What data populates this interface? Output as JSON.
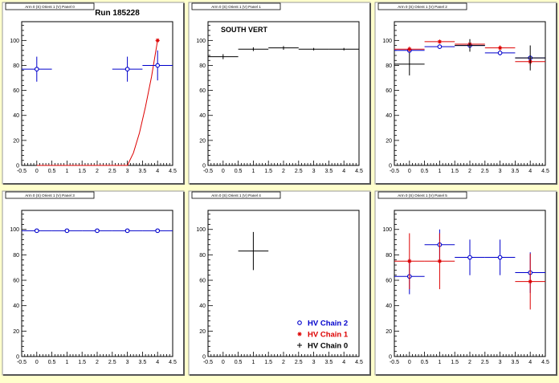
{
  "chart_data": [
    {
      "type": "scatter",
      "panel_title": "Arm 0 (S) Orient 1 (V) Panel 0",
      "title": "Run 185228",
      "xlim": [
        -0.5,
        4.5
      ],
      "ylim": [
        0,
        115
      ],
      "x_ticks": [
        "-0.5",
        "0",
        "0.5",
        "1",
        "1.5",
        "2",
        "2.5",
        "3",
        "3.5",
        "4",
        "4.5"
      ],
      "y_ticks": [
        "0",
        "20",
        "40",
        "60",
        "80",
        "100"
      ],
      "series": [
        {
          "color": "#0000cc",
          "marker": "circle",
          "points": [
            {
              "x": 0,
              "y": 77,
              "xerr": 0.5,
              "yerr": 10
            },
            {
              "x": 3,
              "y": 77,
              "xerr": 0.5,
              "yerr": 10
            },
            {
              "x": 4,
              "y": 80,
              "xerr": 0.5,
              "yerr": 12
            }
          ]
        },
        {
          "color": "#dd0000",
          "marker": "star",
          "points": [
            {
              "x": 4,
              "y": 100,
              "xerr": 0,
              "yerr": 0
            }
          ]
        }
      ],
      "fit_curve": {
        "color": "#dd0000",
        "x": [
          0,
          1,
          2,
          3,
          3.2,
          3.4,
          3.6,
          3.8,
          4.0
        ],
        "y": [
          0,
          0,
          0,
          0,
          10,
          26,
          47,
          71,
          100
        ]
      }
    },
    {
      "type": "scatter",
      "panel_title": "Arm 0 (S) Orient 1 (V) Panel 1",
      "title": "SOUTH VERT",
      "xlim": [
        -0.5,
        4.5
      ],
      "ylim": [
        0,
        115
      ],
      "x_ticks": [
        "-0.5",
        "0",
        "0.5",
        "1",
        "1.5",
        "2",
        "2.5",
        "3",
        "3.5",
        "4",
        "4.5"
      ],
      "y_ticks": [
        "0",
        "20",
        "40",
        "60",
        "80",
        "100"
      ],
      "series": [
        {
          "color": "#000000",
          "marker": "cross",
          "points": [
            {
              "x": 0,
              "y": 87,
              "xerr": 0.5,
              "yerr": 2
            },
            {
              "x": 1,
              "y": 93,
              "xerr": 0.5,
              "yerr": 1.5
            },
            {
              "x": 2,
              "y": 94,
              "xerr": 0.5,
              "yerr": 1.5
            },
            {
              "x": 3,
              "y": 93,
              "xerr": 0.5,
              "yerr": 1
            },
            {
              "x": 4,
              "y": 93,
              "xerr": 0.5,
              "yerr": 1
            }
          ]
        }
      ]
    },
    {
      "type": "scatter",
      "panel_title": "Arm 0 (S) Orient 1 (V) Panel 2",
      "xlim": [
        -0.5,
        4.5
      ],
      "ylim": [
        0,
        115
      ],
      "x_ticks": [
        "-0.5",
        "0",
        "0.5",
        "1",
        "1.5",
        "2",
        "2.5",
        "3",
        "3.5",
        "4",
        "4.5"
      ],
      "y_ticks": [
        "0",
        "20",
        "40",
        "60",
        "80",
        "100"
      ],
      "series": [
        {
          "color": "#0000cc",
          "marker": "circle",
          "points": [
            {
              "x": 0,
              "y": 92,
              "xerr": 0.5,
              "yerr": 2
            },
            {
              "x": 1,
              "y": 95,
              "xerr": 0.5,
              "yerr": 1
            },
            {
              "x": 2,
              "y": 96,
              "xerr": 0.5,
              "yerr": 2
            },
            {
              "x": 3,
              "y": 90,
              "xerr": 0.5,
              "yerr": 2
            },
            {
              "x": 4,
              "y": 86,
              "xerr": 0.5,
              "yerr": 2
            }
          ]
        },
        {
          "color": "#dd0000",
          "marker": "star",
          "points": [
            {
              "x": 0,
              "y": 93,
              "xerr": 0.5,
              "yerr": 2
            },
            {
              "x": 1,
              "y": 99,
              "xerr": 0.5,
              "yerr": 1
            },
            {
              "x": 2,
              "y": 97,
              "xerr": 0.5,
              "yerr": 2
            },
            {
              "x": 3,
              "y": 94,
              "xerr": 0.5,
              "yerr": 2
            },
            {
              "x": 4,
              "y": 83,
              "xerr": 0.5,
              "yerr": 3
            }
          ]
        },
        {
          "color": "#000000",
          "marker": "cross",
          "points": [
            {
              "x": 0,
              "y": 81,
              "xerr": 0.5,
              "yerr": 9
            },
            {
              "x": 2,
              "y": 96,
              "xerr": 0.5,
              "yerr": 5
            },
            {
              "x": 4,
              "y": 86,
              "xerr": 0.5,
              "yerr": 10
            }
          ]
        }
      ]
    },
    {
      "type": "scatter",
      "panel_title": "Arm 0 (S) Orient 1 (V) Panel 3",
      "xlim": [
        -0.5,
        4.5
      ],
      "ylim": [
        0,
        115
      ],
      "x_ticks": [
        "-0.5",
        "0",
        "0.5",
        "1",
        "1.5",
        "2",
        "2.5",
        "3",
        "3.5",
        "4",
        "4.5"
      ],
      "y_ticks": [
        "0",
        "20",
        "40",
        "60",
        "80",
        "100"
      ],
      "series": [
        {
          "color": "#0000cc",
          "marker": "circle",
          "points": [
            {
              "x": 0,
              "y": 99,
              "xerr": 0.5,
              "yerr": 0.5
            },
            {
              "x": 1,
              "y": 99,
              "xerr": 0.5,
              "yerr": 0.5
            },
            {
              "x": 2,
              "y": 99,
              "xerr": 0.5,
              "yerr": 0.5
            },
            {
              "x": 3,
              "y": 99,
              "xerr": 0.5,
              "yerr": 0.5
            },
            {
              "x": 4,
              "y": 99,
              "xerr": 0.5,
              "yerr": 0.5
            }
          ]
        }
      ]
    },
    {
      "type": "scatter",
      "panel_title": "Arm 0 (S) Orient 1 (V) Panel 4",
      "xlim": [
        -0.5,
        4.5
      ],
      "ylim": [
        0,
        115
      ],
      "x_ticks": [
        "-0.5",
        "0",
        "0.5",
        "1",
        "1.5",
        "2",
        "2.5",
        "3",
        "3.5",
        "4",
        "4.5"
      ],
      "y_ticks": [
        "0",
        "20",
        "40",
        "60",
        "80",
        "100"
      ],
      "series": [
        {
          "color": "#000000",
          "marker": "cross",
          "points": [
            {
              "x": 1,
              "y": 83,
              "xerr": 0.5,
              "yerr": 15
            }
          ]
        }
      ],
      "legend": {
        "placement": "bottom-right",
        "entries": [
          {
            "label": "HV Chain 2",
            "color": "#0000cc",
            "marker": "circle"
          },
          {
            "label": "HV Chain 1",
            "color": "#dd0000",
            "marker": "star"
          },
          {
            "label": "HV Chain 0",
            "color": "#000000",
            "marker": "cross"
          }
        ]
      }
    },
    {
      "type": "scatter",
      "panel_title": "Arm 0 (S) Orient 1 (V) Panel 5",
      "xlim": [
        -0.5,
        4.5
      ],
      "ylim": [
        0,
        115
      ],
      "x_ticks": [
        "-0.5",
        "0",
        "0.5",
        "1",
        "1.5",
        "2",
        "2.5",
        "3",
        "3.5",
        "4",
        "4.5"
      ],
      "y_ticks": [
        "0",
        "20",
        "40",
        "60",
        "80",
        "100"
      ],
      "series": [
        {
          "color": "#0000cc",
          "marker": "circle",
          "points": [
            {
              "x": 0,
              "y": 63,
              "xerr": 0.5,
              "yerr": 14
            },
            {
              "x": 1,
              "y": 88,
              "xerr": 0.5,
              "yerr": 12
            },
            {
              "x": 2,
              "y": 78,
              "xerr": 0.5,
              "yerr": 14
            },
            {
              "x": 3,
              "y": 78,
              "xerr": 0.5,
              "yerr": 14
            },
            {
              "x": 4,
              "y": 66,
              "xerr": 0.5,
              "yerr": 16
            }
          ]
        },
        {
          "color": "#dd0000",
          "marker": "star",
          "points": [
            {
              "x": 0,
              "y": 75,
              "xerr": 0.5,
              "yerr": 22
            },
            {
              "x": 1,
              "y": 75,
              "xerr": 0.5,
              "yerr": 22
            },
            {
              "x": 4,
              "y": 59,
              "xerr": 0.5,
              "yerr": 22
            }
          ]
        }
      ]
    }
  ]
}
